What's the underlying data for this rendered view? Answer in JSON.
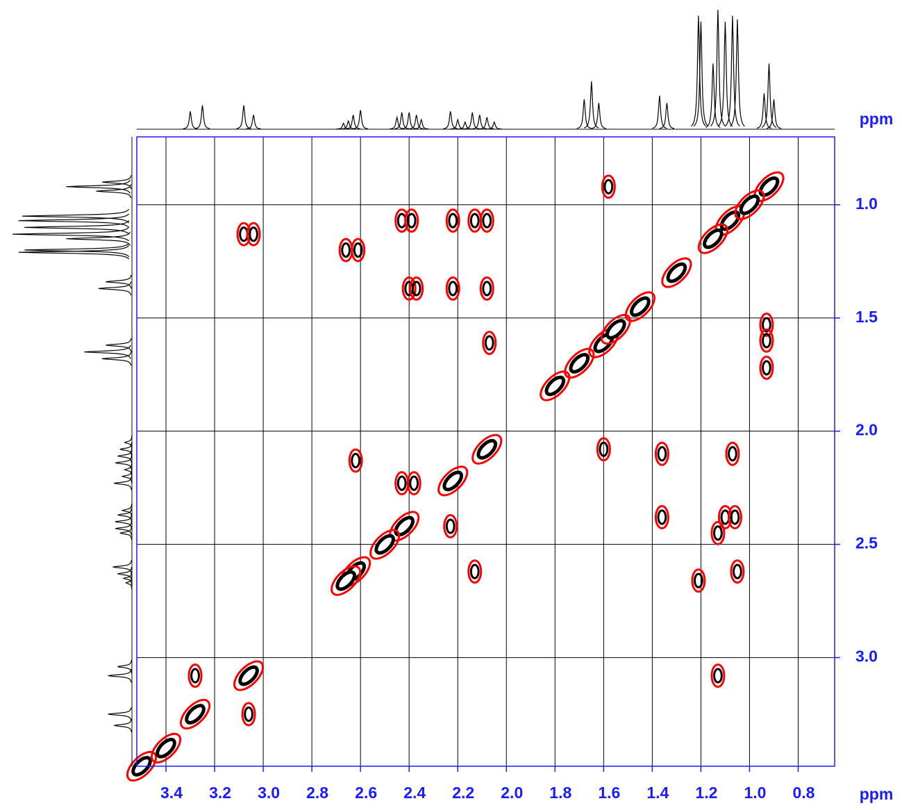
{
  "chart_data": {
    "type": "nmr2d",
    "x_label": "ppm",
    "y_label": "ppm",
    "xlim": [
      3.52,
      0.65
    ],
    "ylim": [
      0.7,
      3.48
    ],
    "xticks": [
      3.4,
      3.2,
      {
        "value": 3,
        "label": "3.0"
      },
      2.8,
      2.6,
      2.4,
      2.2,
      {
        "value": 2,
        "label": "2.0"
      },
      1.8,
      1.6,
      1.4,
      1.2,
      {
        "value": 1,
        "label": "1.0"
      },
      0.8
    ],
    "yticks": [
      {
        "value": 1,
        "label": "1.0"
      },
      1.5,
      {
        "value": 2,
        "label": "2.0"
      },
      2.5,
      {
        "value": 3,
        "label": "3.0"
      }
    ],
    "grid": true,
    "axis_color": "#1a1aff",
    "projection": {
      "color": "#000000",
      "ppm": [
        3.3,
        3.25,
        3.08,
        3.04,
        2.67,
        2.65,
        2.63,
        2.6,
        2.45,
        2.43,
        2.4,
        2.37,
        2.35,
        2.23,
        2.2,
        2.17,
        2.14,
        2.11,
        2.08,
        2.05,
        1.68,
        1.65,
        1.62,
        1.37,
        1.34,
        1.21,
        1.2,
        1.15,
        1.13,
        1.1,
        1.07,
        1.05,
        0.94,
        0.92,
        0.9
      ],
      "height": [
        15,
        20,
        20,
        12,
        5,
        7,
        12,
        16,
        10,
        14,
        14,
        12,
        8,
        15,
        8,
        6,
        14,
        12,
        10,
        6,
        25,
        40,
        22,
        28,
        22,
        95,
        90,
        55,
        100,
        90,
        95,
        92,
        30,
        55,
        25
      ]
    },
    "contour_colors": [
      "#ff0000",
      "#000000"
    ],
    "cross_peaks": {
      "x": [
        0.92,
        1.58,
        1.08,
        2.43,
        2.39,
        2.22,
        2.13,
        2.08,
        3.08,
        3.04,
        2.66,
        2.61,
        2.4,
        2.37,
        2.22,
        2.08,
        2.07,
        1.6,
        1.6,
        2.62,
        2.43,
        2.38,
        2.23,
        2.62,
        2.13,
        1.36,
        1.07,
        1.36,
        1.1,
        1.06,
        1.13,
        1.21,
        1.05,
        3.28,
        3.06,
        1.13,
        3.28,
        3.06,
        3.5,
        0.93,
        0.93,
        0.93,
        1.0,
        1.15,
        1.3,
        1.45,
        1.55,
        1.7,
        1.8,
        2.08,
        2.22,
        2.42,
        2.5,
        2.66,
        3.4
      ],
      "y": [
        0.92,
        0.92,
        1.07,
        1.07,
        1.07,
        1.07,
        1.07,
        1.07,
        1.13,
        1.13,
        1.2,
        1.2,
        1.37,
        1.37,
        1.37,
        1.37,
        1.61,
        1.61,
        2.08,
        2.13,
        2.23,
        2.23,
        2.42,
        2.62,
        2.62,
        2.1,
        2.1,
        2.38,
        2.38,
        2.38,
        2.45,
        2.66,
        2.62,
        3.08,
        3.08,
        3.08,
        3.25,
        3.25,
        3.48,
        1.53,
        1.6,
        1.72,
        1.0,
        1.15,
        1.3,
        1.45,
        1.55,
        1.7,
        1.8,
        2.08,
        2.22,
        2.42,
        2.5,
        2.66,
        3.4
      ]
    }
  }
}
